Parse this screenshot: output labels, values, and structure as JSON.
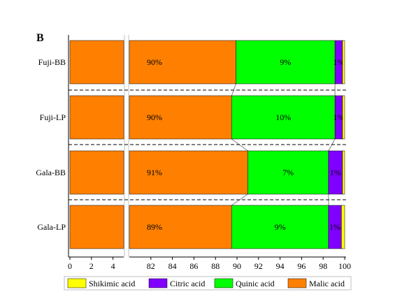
{
  "chart_data": {
    "type": "bar",
    "orientation": "horizontal",
    "stacked": true,
    "panel_label": "B",
    "categories": [
      "Fuji-BB",
      "Fuji-LP",
      "Gala-BB",
      "Gala-LP"
    ],
    "series": [
      {
        "name": "Malic acid",
        "color": "#FF8000",
        "values": [
          89.9,
          89.5,
          91.0,
          89.5
        ],
        "labels": [
          "90%",
          "90%",
          "91%",
          "89%"
        ]
      },
      {
        "name": "Quinic acid",
        "color": "#00FF00",
        "values": [
          9.2,
          9.6,
          7.5,
          9.0
        ],
        "labels": [
          "9%",
          "10%",
          "7%",
          "9%"
        ]
      },
      {
        "name": "Citric acid",
        "color": "#8000FF",
        "values": [
          0.7,
          0.7,
          1.3,
          1.2
        ],
        "labels": [
          "1%",
          "1%",
          "1%",
          "1%"
        ]
      },
      {
        "name": "Shikimic acid",
        "color": "#FFFF00",
        "values": [
          0.2,
          0.2,
          0.2,
          0.3
        ],
        "labels": [
          "",
          "",
          "",
          ""
        ]
      }
    ],
    "x_segments": [
      [
        0,
        5
      ],
      [
        80,
        100
      ]
    ],
    "xticks": [
      0,
      2,
      4,
      82,
      84,
      86,
      88,
      90,
      92,
      94,
      96,
      98,
      100
    ],
    "legend_order": [
      "Shikimic acid",
      "Citric acid",
      "Quinic acid",
      "Malic acid"
    ],
    "legend_position": "bottom",
    "title": "",
    "xlabel": "",
    "ylabel": ""
  }
}
